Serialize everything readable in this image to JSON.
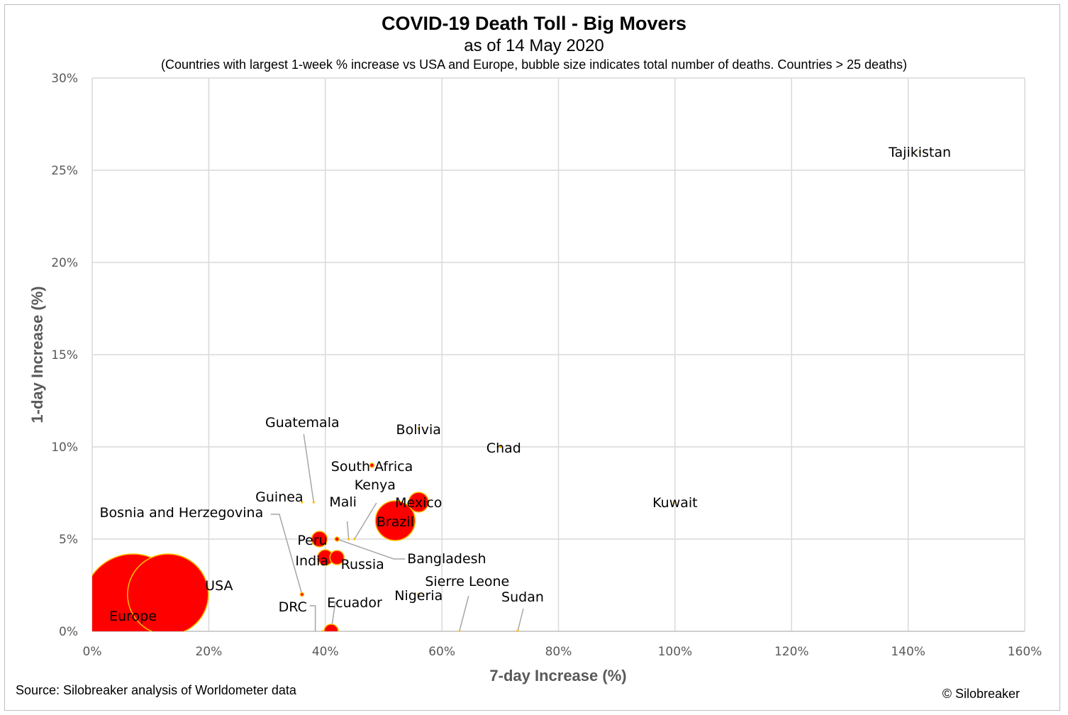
{
  "chart_data": {
    "type": "scatter",
    "title": "COVID-19 Death Toll - Big Movers",
    "subtitle": "as of 14 May 2020",
    "note": "(Countries with largest 1-week % increase vs USA and Europe, bubble size indicates total number of deaths. Countries > 25 deaths)",
    "xlabel": "7-day Increase (%)",
    "ylabel": "1-day Increase (%)",
    "xlim": [
      0,
      160
    ],
    "ylim": [
      0,
      30
    ],
    "xticks": [
      "0%",
      "20%",
      "40%",
      "60%",
      "80%",
      "100%",
      "120%",
      "140%",
      "160%"
    ],
    "yticks": [
      "0%",
      "5%",
      "10%",
      "15%",
      "20%",
      "25%",
      "30%"
    ],
    "grid": true,
    "bubble_fill": "#ff0000",
    "bubble_edge": "#ffc000",
    "points": [
      {
        "name": "Europe",
        "x": 7,
        "y": 1.5,
        "r": 70
      },
      {
        "name": "USA",
        "x": 13,
        "y": 2.0,
        "r": 57
      },
      {
        "name": "Brazil",
        "x": 52,
        "y": 6.0,
        "r": 28
      },
      {
        "name": "Mexico",
        "x": 56,
        "y": 7.0,
        "r": 14
      },
      {
        "name": "Peru",
        "x": 39,
        "y": 5.0,
        "r": 11
      },
      {
        "name": "India",
        "x": 40,
        "y": 4.0,
        "r": 11
      },
      {
        "name": "Russia",
        "x": 42,
        "y": 4.0,
        "r": 10
      },
      {
        "name": "Ecuador",
        "x": 41,
        "y": 0.0,
        "r": 10
      },
      {
        "name": "Bangladesh",
        "x": 42,
        "y": 5.0,
        "r": 3
      },
      {
        "name": "South Africa",
        "x": 48,
        "y": 9.0,
        "r": 3
      },
      {
        "name": "Kenya",
        "x": 45,
        "y": 5.0,
        "r": 1.5
      },
      {
        "name": "Mali",
        "x": 44,
        "y": 5.0,
        "r": 1.5
      },
      {
        "name": "Guinea",
        "x": 36,
        "y": 7.0,
        "r": 1.5
      },
      {
        "name": "Guatemala",
        "x": 38,
        "y": 7.0,
        "r": 1.5
      },
      {
        "name": "Bosnia and Herzegovina",
        "x": 36,
        "y": 2.0,
        "r": 2.5
      },
      {
        "name": "DRC",
        "x": 39.5,
        "y": 0.0,
        "r": 1.5
      },
      {
        "name": "Nigeria",
        "x": 56,
        "y": 2.0,
        "r": 2
      },
      {
        "name": "Sierre Leone",
        "x": 63,
        "y": 0.0,
        "r": 1.5
      },
      {
        "name": "Sudan",
        "x": 73,
        "y": 0.0,
        "r": 2
      },
      {
        "name": "Bolivia",
        "x": 56,
        "y": 11.0,
        "r": 1.5
      },
      {
        "name": "Chad",
        "x": 70,
        "y": 10.0,
        "r": 1.5
      },
      {
        "name": "Kuwait",
        "x": 100,
        "y": 7.0,
        "r": 1
      },
      {
        "name": "Tajikistan",
        "x": 142,
        "y": 26.0,
        "r": 1
      }
    ]
  },
  "footer": {
    "source": "Source: Silobreaker analysis of Worldometer data",
    "copyright": "© Silobreaker"
  }
}
